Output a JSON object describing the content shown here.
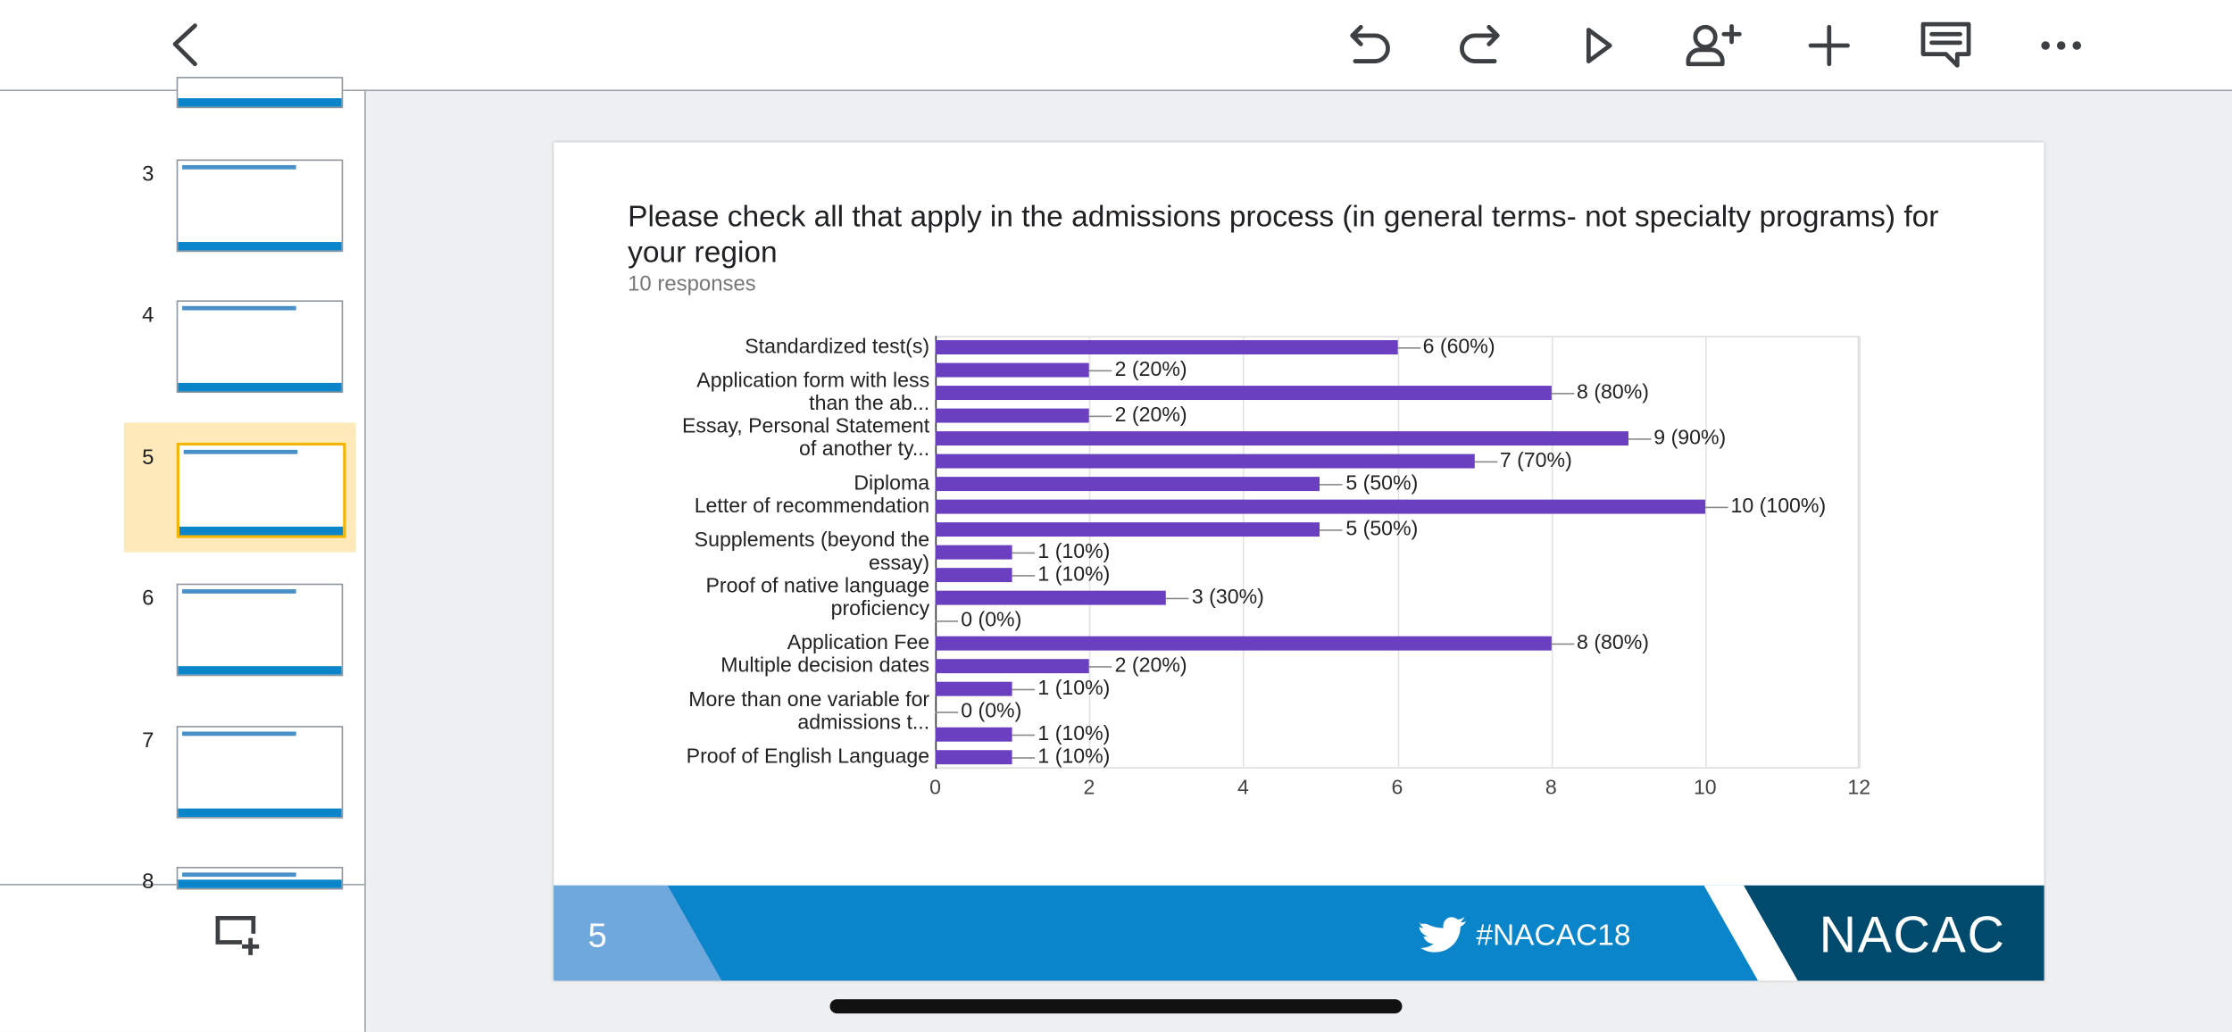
{
  "slide_panel": {
    "slides": [
      "3",
      "4",
      "5",
      "6",
      "7",
      "8"
    ]
  },
  "chart_data": {
    "type": "bar",
    "orientation": "horizontal",
    "title": "Please check all that apply in the admissions process (in general terms- not specialty programs) for your region",
    "subtitle": "10 responses",
    "categories": [
      "Standardized test(s)",
      null,
      "Application form with less\nthan the ab...",
      null,
      "Essay, Personal Statement\nof another ty...",
      null,
      "Diploma",
      "Letter of recommendation",
      null,
      "Supplements (beyond the\nessay)",
      null,
      "Proof of native language\nproficiency",
      null,
      "Application Fee",
      "Multiple decision dates",
      null,
      "More than one variable for\nadmissions t...",
      null,
      "Proof of English Language"
    ],
    "values": [
      6,
      2,
      8,
      2,
      9,
      7,
      5,
      10,
      5,
      1,
      1,
      3,
      0,
      8,
      2,
      1,
      0,
      1,
      1
    ],
    "value_labels": [
      "6 (60%)",
      "2 (20%)",
      "8 (80%)",
      "2 (20%)",
      "9 (90%)",
      "7 (70%)",
      "5 (50%)",
      "10 (100%)",
      "5 (50%)",
      "1 (10%)",
      "1 (10%)",
      "3 (30%)",
      "0 (0%)",
      "8 (80%)",
      "2 (20%)",
      "1 (10%)",
      "0 (0%)",
      "1 (10%)",
      "1 (10%)"
    ],
    "color": "#6a3fc0",
    "xlim": [
      0,
      12
    ],
    "xticks": [
      0,
      2,
      4,
      6,
      8,
      10,
      12
    ],
    "grid": true
  },
  "slide_footer": {
    "slide_number": "5",
    "hashtag": "#NACAC18",
    "logo": "NACAC"
  }
}
